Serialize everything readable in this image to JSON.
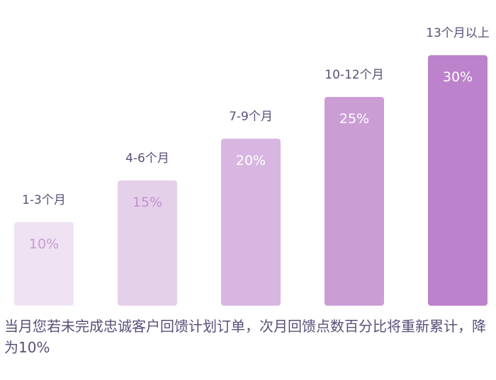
{
  "chart_data": {
    "type": "bar",
    "categories": [
      "1-3个月",
      "4-6个月",
      "7-9个月",
      "10-12个月",
      "13个月以上"
    ],
    "values": [
      10,
      15,
      20,
      25,
      30
    ],
    "value_labels": [
      "10%",
      "15%",
      "20%",
      "25%",
      "30%"
    ],
    "unit": "%",
    "ylim": [
      0,
      30
    ],
    "grid": false,
    "legend": "none",
    "colors": [
      "#eee2f3",
      "#e5d0ea",
      "#d8b6e1",
      "#cb9dd5",
      "#bc82cb"
    ],
    "value_label_colors": [
      "#c79bd3",
      "#c190cf",
      "#ffffff",
      "#ffffff",
      "#ffffff"
    ],
    "category_label_color": "#5b4f78"
  },
  "footnote": "当月您若未完成忠诚客户回馈计划订单，次月回馈点数百分比将重新累计，降为10%"
}
